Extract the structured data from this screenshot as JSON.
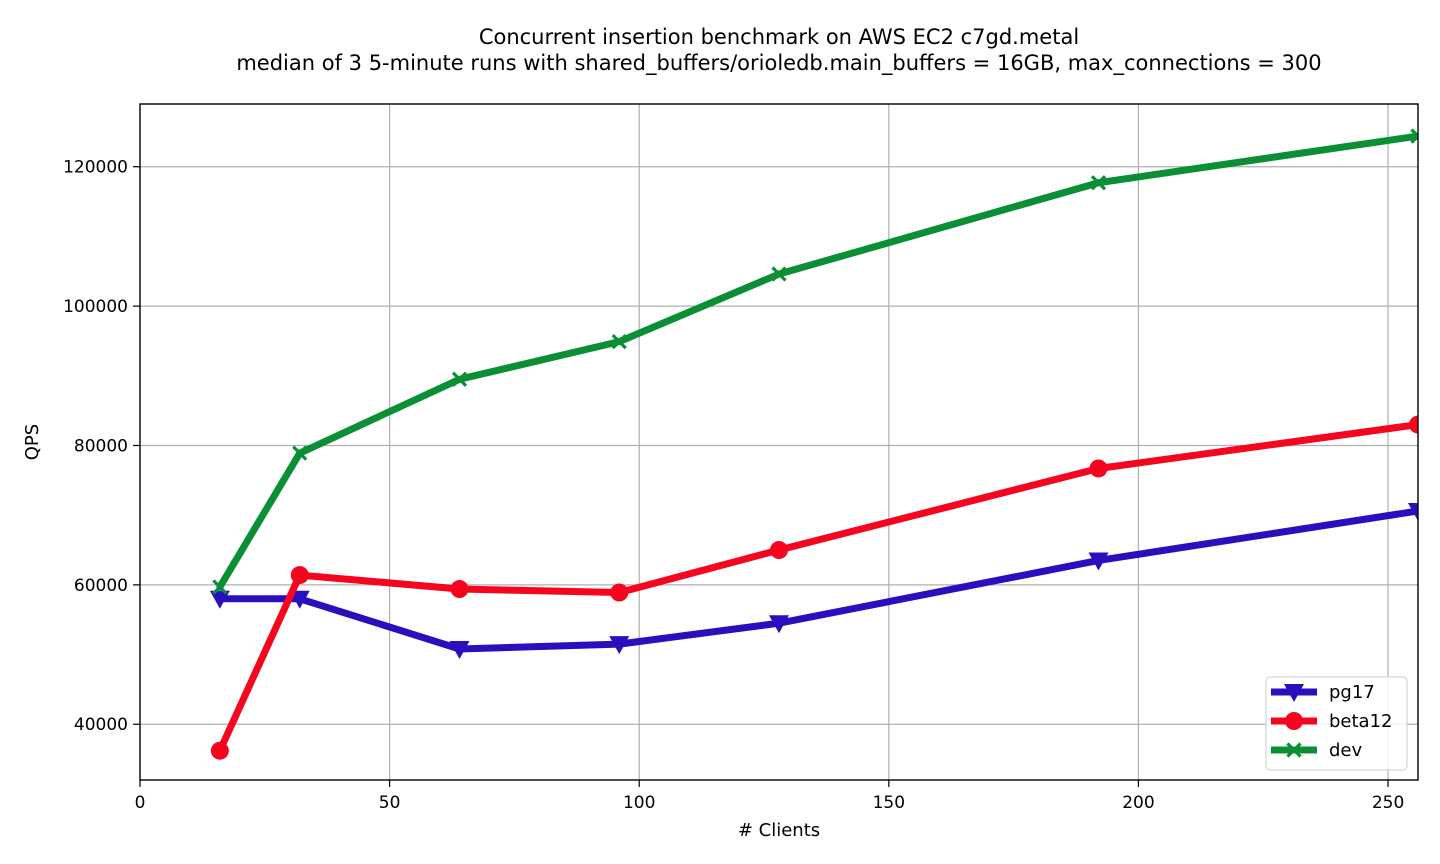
{
  "chart_data": {
    "type": "line",
    "title": "Concurrent insertion benchmark on AWS EC2 c7gd.metal",
    "subtitle": "median of 3 5-minute runs with shared_buffers/orioledb.main_buffers = 16GB, max_connections = 300",
    "xlabel": "# Clients",
    "ylabel": "QPS",
    "xlim": [
      0,
      256
    ],
    "ylim": [
      32000,
      129000
    ],
    "xticks": [
      0,
      50,
      100,
      150,
      200,
      250
    ],
    "yticks": [
      40000,
      60000,
      80000,
      100000,
      120000
    ],
    "grid": true,
    "legend_position": "lower-right",
    "x": [
      16,
      32,
      64,
      96,
      128,
      192,
      256
    ],
    "series": [
      {
        "name": "pg17",
        "color": "#2a0fbf",
        "marker": "triangle-down",
        "values": [
          58000,
          58000,
          50800,
          51500,
          54500,
          63500,
          70600
        ]
      },
      {
        "name": "beta12",
        "color": "#f5051e",
        "marker": "circle",
        "values": [
          36200,
          61400,
          59400,
          58900,
          65000,
          76700,
          83000
        ]
      },
      {
        "name": "dev",
        "color": "#0a8f35",
        "marker": "x",
        "values": [
          59700,
          78900,
          89500,
          94900,
          104600,
          117700,
          124400
        ]
      }
    ]
  }
}
